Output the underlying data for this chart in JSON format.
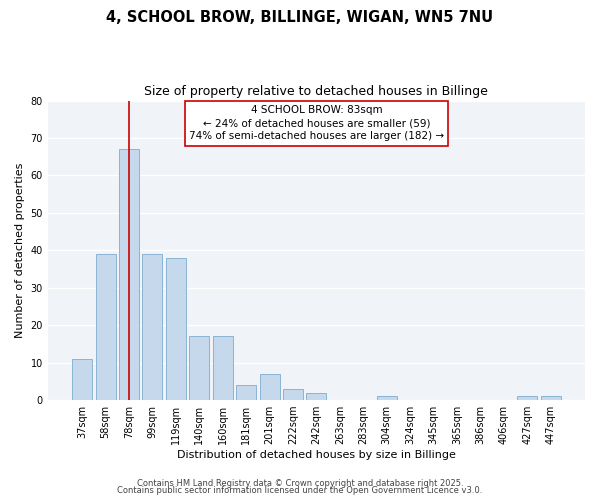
{
  "title": "4, SCHOOL BROW, BILLINGE, WIGAN, WN5 7NU",
  "subtitle": "Size of property relative to detached houses in Billinge",
  "xlabel": "Distribution of detached houses by size in Billinge",
  "ylabel": "Number of detached properties",
  "categories": [
    "37sqm",
    "58sqm",
    "78sqm",
    "99sqm",
    "119sqm",
    "140sqm",
    "160sqm",
    "181sqm",
    "201sqm",
    "222sqm",
    "242sqm",
    "263sqm",
    "283sqm",
    "304sqm",
    "324sqm",
    "345sqm",
    "365sqm",
    "386sqm",
    "406sqm",
    "427sqm",
    "447sqm"
  ],
  "values": [
    11,
    39,
    67,
    39,
    38,
    17,
    17,
    4,
    7,
    3,
    2,
    0,
    0,
    1,
    0,
    0,
    0,
    0,
    0,
    1,
    1
  ],
  "bar_color": "#c6d9ec",
  "bar_edge_color": "#8ab4d4",
  "marker_line_index": 2,
  "marker_line_color": "#cc0000",
  "ylim": [
    0,
    80
  ],
  "yticks": [
    0,
    10,
    20,
    30,
    40,
    50,
    60,
    70,
    80
  ],
  "annotation_text": "4 SCHOOL BROW: 83sqm\n← 24% of detached houses are smaller (59)\n74% of semi-detached houses are larger (182) →",
  "annotation_box_edge": "#cc0000",
  "footer_line1": "Contains HM Land Registry data © Crown copyright and database right 2025.",
  "footer_line2": "Contains public sector information licensed under the Open Government Licence v3.0.",
  "background_color": "#ffffff",
  "plot_bg_color": "#f0f4f8",
  "grid_color": "#ffffff",
  "title_fontsize": 10.5,
  "subtitle_fontsize": 9,
  "axis_label_fontsize": 8,
  "tick_fontsize": 7,
  "annotation_fontsize": 7.5,
  "footer_fontsize": 6
}
